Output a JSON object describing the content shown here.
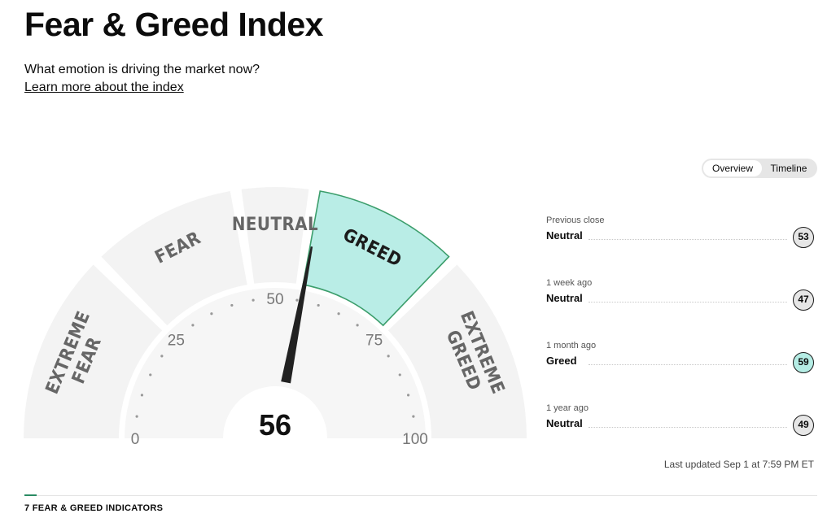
{
  "header": {
    "title": "Fear & Greed Index",
    "subtitle": "What emotion is driving the market now?",
    "learn_more": "Learn more about the index"
  },
  "view_toggle": {
    "options": [
      "Overview",
      "Timeline"
    ],
    "selected": "Overview"
  },
  "gauge": {
    "value": 56,
    "value_label": "56",
    "active_segment": "GREED",
    "segments": [
      {
        "lines": [
          "EXTREME",
          "FEAR"
        ],
        "range": [
          0,
          25
        ]
      },
      {
        "lines": [
          "FEAR"
        ],
        "range": [
          25,
          45
        ]
      },
      {
        "lines": [
          "NEUTRAL"
        ],
        "range": [
          45,
          55
        ]
      },
      {
        "lines": [
          "GREED"
        ],
        "range": [
          55,
          75
        ]
      },
      {
        "lines": [
          "EXTREME",
          "GREED"
        ],
        "range": [
          75,
          100
        ]
      }
    ],
    "scale_labels": [
      "0",
      "25",
      "50",
      "75",
      "100"
    ],
    "colors": {
      "segment": "#f3f3f3",
      "inner": "#f6f6f6",
      "active_fill": "#b9ede6",
      "active_stroke": "#3c9e6c",
      "label": "#666666",
      "active_label": "#1b1b1b",
      "needle": "#222222",
      "ticks": "#999999"
    }
  },
  "history": [
    {
      "label": "Previous close",
      "value": "Neutral",
      "score": "53",
      "rating": "neutral"
    },
    {
      "label": "1 week ago",
      "value": "Neutral",
      "score": "47",
      "rating": "neutral"
    },
    {
      "label": "1 month ago",
      "value": "Greed",
      "score": "59",
      "rating": "greed"
    },
    {
      "label": "1 year ago",
      "value": "Neutral",
      "score": "49",
      "rating": "neutral"
    }
  ],
  "last_updated": "Last updated Sep 1 at 7:59 PM ET",
  "indicators_heading": "7 FEAR & GREED INDICATORS"
}
